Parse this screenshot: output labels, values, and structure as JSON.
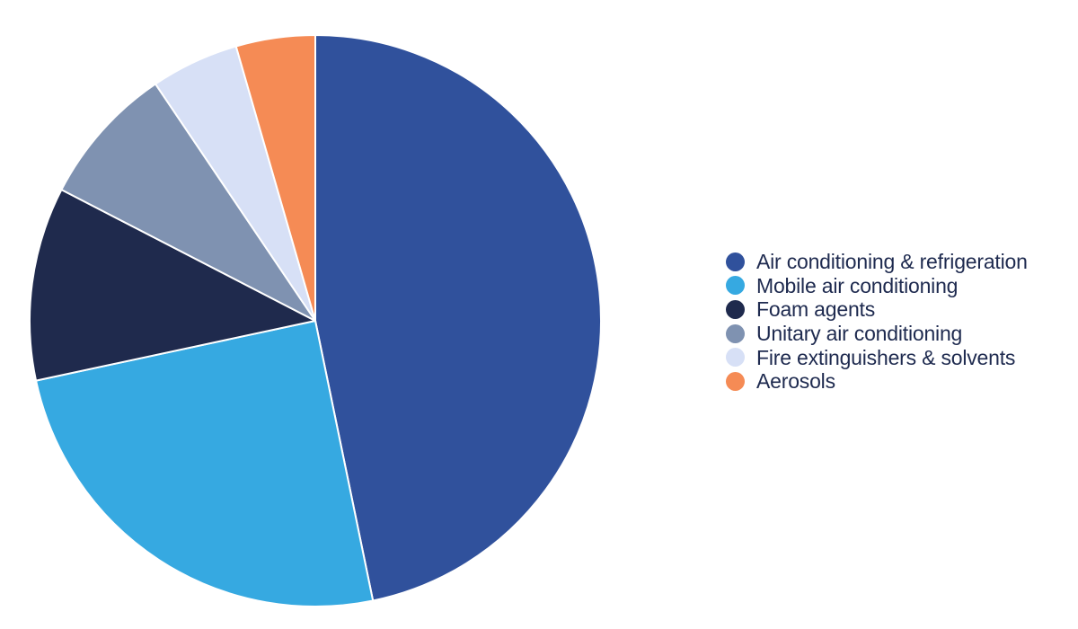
{
  "chart_data": {
    "type": "pie",
    "title": "",
    "legend_position": "right",
    "slices": [
      {
        "label": "Air conditioning & refrigeration",
        "value": 47,
        "color": "#30519c"
      },
      {
        "label": "Mobile air conditioning",
        "value": 25,
        "color": "#36a9e1"
      },
      {
        "label": "Foam agents",
        "value": 11,
        "color": "#1f2a4d"
      },
      {
        "label": "Unitary air conditioning",
        "value": 8,
        "color": "#7f92b1"
      },
      {
        "label": "Fire extinguishers & solvents",
        "value": 5,
        "color": "#d7e0f6"
      },
      {
        "label": "Aerosols",
        "value": 4.5,
        "color": "#f58b55"
      }
    ]
  }
}
